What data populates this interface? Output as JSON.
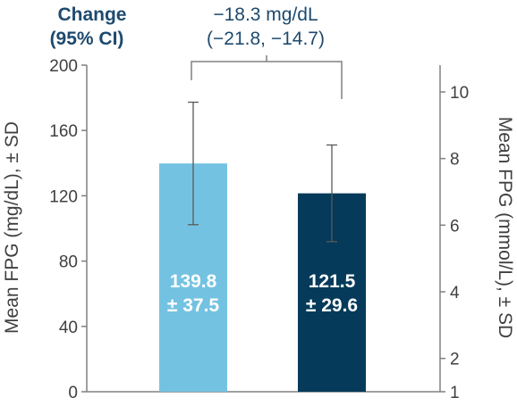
{
  "header": {
    "change_label_line1": "Change",
    "change_label_line2": "(95% CI)",
    "difference_line1": "−18.3 mg/dL",
    "difference_line2": "(−21.8, −14.7)"
  },
  "colors": {
    "bar1": "#74c2e1",
    "bar2": "#053a5a",
    "axis": "#808080",
    "text": "#404040",
    "header": "#1e4a6e"
  },
  "chart_data": {
    "type": "bar",
    "ylabel": "Mean FPG (mg/dL), ± SD",
    "ylabel_right": "Mean FPG (mmol/L), ± SD",
    "ylim": [
      0,
      200
    ],
    "yticks": [
      "0",
      "40",
      "80",
      "120",
      "160",
      "200"
    ],
    "ylim_right": [
      1,
      11
    ],
    "yticks_right": [
      "1",
      "2",
      "4",
      "6",
      "8",
      "10"
    ],
    "grid": false,
    "bars": [
      {
        "value": 139.8,
        "sd": 37.5,
        "label_line1": "139.8",
        "label_line2": "± 37.5",
        "color": "#74c2e1"
      },
      {
        "value": 121.5,
        "sd": 29.6,
        "label_line1": "121.5",
        "label_line2": "± 29.6",
        "color": "#053a5a"
      }
    ]
  }
}
